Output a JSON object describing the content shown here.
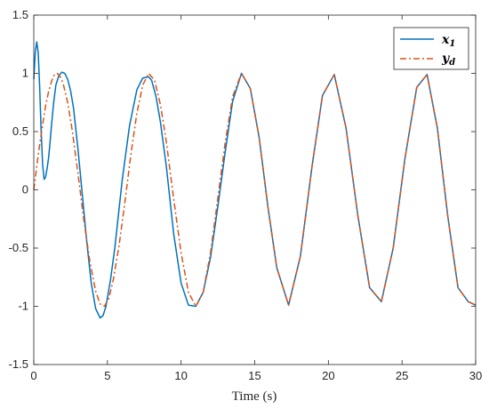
{
  "chart_data": {
    "type": "line",
    "xlabel": "Time (s)",
    "ylabel": "",
    "xlim": [
      0,
      30
    ],
    "ylim": [
      -1.5,
      1.5
    ],
    "xticks": [
      0,
      5,
      10,
      15,
      20,
      25,
      30
    ],
    "yticks": [
      -1.5,
      -1,
      -0.5,
      0,
      0.5,
      1,
      1.5
    ],
    "xtick_labels": [
      "0",
      "5",
      "10",
      "15",
      "20",
      "25",
      "30"
    ],
    "ytick_labels": [
      "-1.5",
      "-1",
      "-0.5",
      "0",
      "0.5",
      "1",
      "1.5"
    ],
    "grid": false,
    "legend_position": "top-right",
    "series": [
      {
        "name": "x1",
        "color": "#0072BD",
        "style": "solid",
        "x": [
          0,
          0.1,
          0.2,
          0.3,
          0.4,
          0.5,
          0.6,
          0.7,
          0.8,
          0.9,
          1.0,
          1.1,
          1.2,
          1.35,
          1.5,
          1.7,
          1.9,
          2.1,
          2.3,
          2.5,
          2.7,
          3.0,
          3.3,
          3.6,
          3.9,
          4.2,
          4.5,
          4.7,
          4.9,
          5.2,
          5.5,
          6.0,
          6.5,
          7.0,
          7.4,
          7.8,
          8.0,
          8.3,
          8.6,
          9.0,
          9.5,
          10.0,
          10.5,
          11.0,
          11.5,
          12.0,
          12.5,
          13.0,
          13.5,
          14.1,
          14.7,
          15.3,
          15.9,
          16.5,
          17.3,
          18.1,
          18.9,
          19.6,
          20.4,
          21.2,
          22.0,
          22.8,
          23.6,
          24.4,
          25.2,
          26.0,
          26.7,
          27.4,
          28.1,
          28.8,
          29.5,
          30.0
        ],
        "y": [
          0.95,
          1.18,
          1.27,
          1.18,
          0.88,
          0.5,
          0.22,
          0.09,
          0.11,
          0.18,
          0.27,
          0.4,
          0.55,
          0.75,
          0.9,
          0.98,
          1.01,
          1.0,
          0.95,
          0.85,
          0.7,
          0.35,
          -0.05,
          -0.45,
          -0.8,
          -1.02,
          -1.1,
          -1.08,
          -1.0,
          -0.78,
          -0.5,
          0.08,
          0.55,
          0.86,
          0.96,
          0.97,
          0.94,
          0.8,
          0.58,
          0.2,
          -0.38,
          -0.8,
          -0.99,
          -1.0,
          -0.88,
          -0.58,
          -0.14,
          0.33,
          0.76,
          1.0,
          0.87,
          0.45,
          -0.15,
          -0.67,
          -0.99,
          -0.57,
          0.21,
          0.81,
          0.99,
          0.53,
          -0.22,
          -0.84,
          -0.96,
          -0.5,
          0.27,
          0.88,
          0.99,
          0.53,
          -0.22,
          -0.84,
          -0.96,
          -0.99
        ]
      },
      {
        "name": "yd",
        "color": "#D95319",
        "style": "dashdot",
        "x": [
          0,
          0.2,
          0.4,
          0.6,
          0.8,
          1.0,
          1.2,
          1.4,
          1.6,
          1.8,
          2.0,
          2.3,
          2.6,
          3.0,
          3.4,
          3.8,
          4.2,
          4.5,
          4.8,
          5.1,
          5.4,
          5.8,
          6.2,
          6.6,
          7.0,
          7.4,
          7.8,
          8.2,
          8.6,
          9.0,
          9.5,
          10.0,
          10.5,
          11.0,
          11.5,
          12.0,
          12.5,
          13.0,
          13.5,
          14.1,
          14.7,
          15.3,
          15.9,
          16.5,
          17.3,
          18.1,
          18.9,
          19.6,
          20.4,
          21.2,
          22.0,
          22.8,
          23.6,
          24.4,
          25.2,
          26.0,
          26.7,
          27.4,
          28.1,
          28.8,
          29.5,
          30.0
        ],
        "y": [
          0.0,
          0.2,
          0.39,
          0.56,
          0.72,
          0.84,
          0.93,
          0.99,
          1.0,
          0.97,
          0.91,
          0.75,
          0.52,
          0.14,
          -0.26,
          -0.61,
          -0.87,
          -0.98,
          -1.0,
          -0.93,
          -0.77,
          -0.47,
          -0.09,
          0.31,
          0.66,
          0.9,
          1.0,
          0.94,
          0.73,
          0.41,
          -0.08,
          -0.54,
          -0.88,
          -1.0,
          -0.88,
          -0.54,
          -0.07,
          0.41,
          0.8,
          1.0,
          0.87,
          0.45,
          -0.15,
          -0.67,
          -0.99,
          -0.57,
          0.21,
          0.81,
          0.99,
          0.53,
          -0.22,
          -0.84,
          -0.96,
          -0.5,
          0.27,
          0.88,
          0.99,
          0.53,
          -0.22,
          -0.84,
          -0.96,
          -0.99
        ]
      }
    ]
  },
  "legend": {
    "items": [
      {
        "base": "x",
        "sub": "1"
      },
      {
        "base": "y",
        "sub": "d"
      }
    ]
  }
}
